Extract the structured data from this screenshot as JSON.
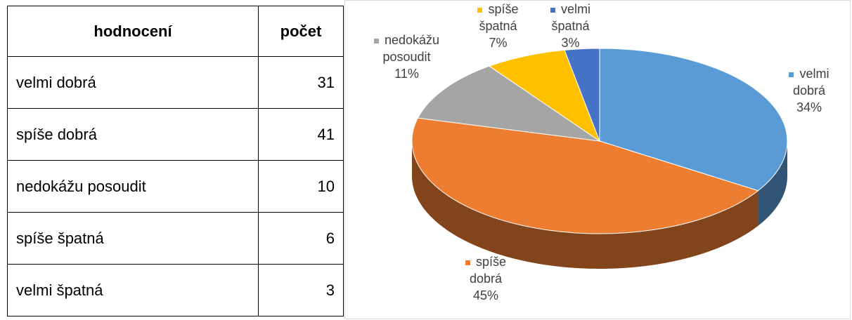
{
  "table": {
    "header": [
      "hodnocení",
      "počet"
    ],
    "rows": [
      [
        "velmi dobrá",
        31
      ],
      [
        "spíše dobrá",
        41
      ],
      [
        "nedokážu posoudit",
        10
      ],
      [
        "spíše špatná",
        6
      ],
      [
        "velmi špatná",
        3
      ]
    ]
  },
  "chart_data": {
    "type": "pie",
    "categories": [
      "velmi dobrá",
      "spíše dobrá",
      "nedokážu posoudit",
      "spíše špatná",
      "velmi špatná"
    ],
    "values": [
      34,
      45,
      11,
      7,
      3
    ],
    "value_labels": [
      "34%",
      "45%",
      "11%",
      "7%",
      "3%"
    ],
    "colors": [
      "#5b9bd5",
      "#ed7d31",
      "#a5a5a5",
      "#ffc000",
      "#4472c4"
    ]
  }
}
